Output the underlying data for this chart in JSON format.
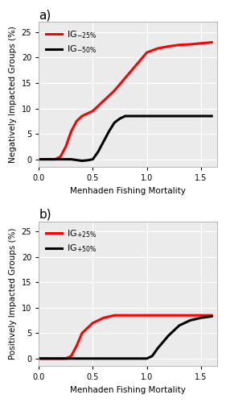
{
  "panel_a": {
    "title": "a)",
    "ylabel": "Negatively Impacted Groups (%)",
    "xlabel": "Menhaden Fishing Mortality",
    "xlim": [
      0.0,
      1.65
    ],
    "ylim": [
      -1.5,
      27
    ],
    "yticks": [
      0,
      5,
      10,
      15,
      20,
      25
    ],
    "xticks": [
      0.0,
      0.5,
      1.0,
      1.5
    ],
    "red_x": [
      0.0,
      0.15,
      0.2,
      0.25,
      0.3,
      0.35,
      0.4,
      0.45,
      0.5,
      0.6,
      0.7,
      0.8,
      0.9,
      1.0,
      1.1,
      1.2,
      1.3,
      1.4,
      1.5,
      1.6
    ],
    "red_y": [
      0.0,
      0.0,
      0.5,
      2.5,
      5.5,
      7.5,
      8.5,
      9.0,
      9.5,
      11.5,
      13.5,
      16.0,
      18.5,
      21.0,
      21.8,
      22.2,
      22.5,
      22.6,
      22.8,
      23.0
    ],
    "black_x": [
      0.0,
      0.3,
      0.4,
      0.45,
      0.5,
      0.55,
      0.6,
      0.65,
      0.7,
      0.75,
      0.8,
      0.9,
      1.0,
      1.1,
      1.6
    ],
    "black_y": [
      0.0,
      0.0,
      -0.3,
      -0.2,
      0.0,
      1.5,
      3.5,
      5.5,
      7.2,
      8.0,
      8.5,
      8.5,
      8.5,
      8.5,
      8.5
    ],
    "leg_labels": [
      "IG$_{-25\\%}$",
      "IG$_{-50\\%}$"
    ],
    "red_color": "#FF0000",
    "black_color": "#000000"
  },
  "panel_b": {
    "title": "b)",
    "ylabel": "Positively Impacted Groups (%)",
    "xlabel": "Menhaden Fishing Mortality",
    "xlim": [
      0.0,
      1.65
    ],
    "ylim": [
      -1.5,
      27
    ],
    "yticks": [
      0,
      5,
      10,
      15,
      20,
      25
    ],
    "xticks": [
      0.0,
      0.5,
      1.0,
      1.5
    ],
    "red_x": [
      0.0,
      0.25,
      0.3,
      0.35,
      0.4,
      0.5,
      0.6,
      0.7,
      0.8,
      0.9,
      1.0,
      1.6
    ],
    "red_y": [
      0.0,
      0.0,
      0.5,
      2.5,
      5.0,
      7.0,
      8.0,
      8.5,
      8.5,
      8.5,
      8.5,
      8.5
    ],
    "black_x": [
      0.0,
      0.9,
      1.0,
      1.05,
      1.1,
      1.2,
      1.3,
      1.4,
      1.5,
      1.6
    ],
    "black_y": [
      0.0,
      0.0,
      0.0,
      0.5,
      2.0,
      4.5,
      6.5,
      7.5,
      8.0,
      8.3
    ],
    "leg_labels": [
      "IG$_{+25\\%}$",
      "IG$_{+50\\%}$"
    ],
    "red_color": "#FF0000",
    "black_color": "#000000"
  },
  "figure_bg": "#ffffff",
  "axes_bg": "#ebebeb",
  "grid_color": "#ffffff",
  "linewidth": 2.2,
  "title_fontsize": 11,
  "label_fontsize": 7.5,
  "tick_fontsize": 7.0,
  "legend_fontsize": 8.0
}
